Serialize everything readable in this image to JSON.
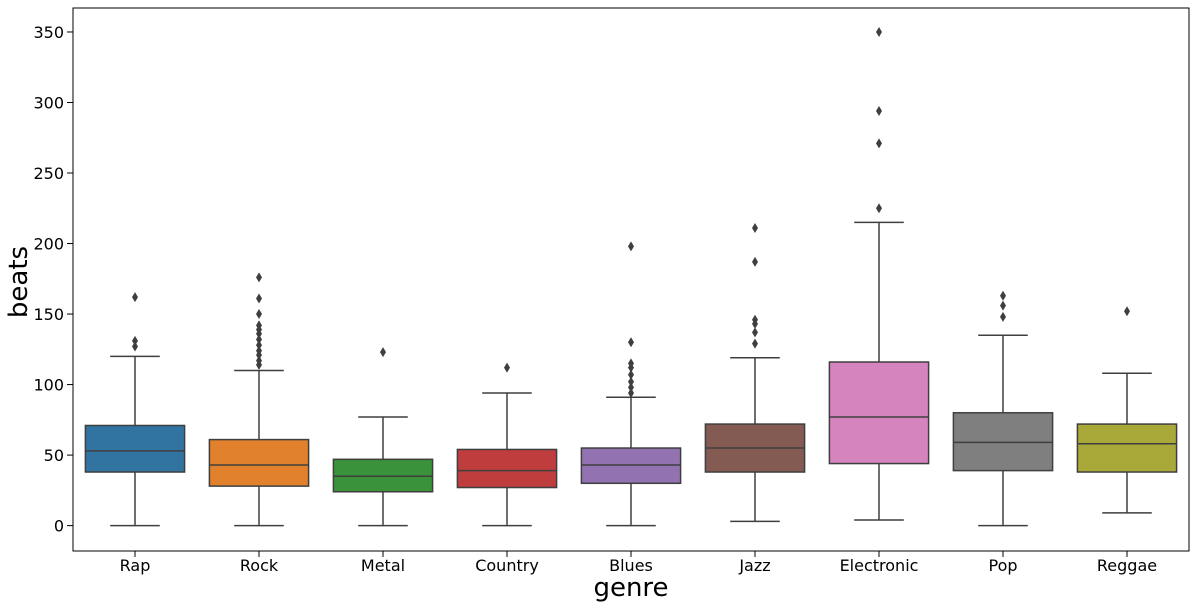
{
  "chart_data": {
    "type": "box",
    "title": "",
    "xlabel": "genre",
    "ylabel": "beats",
    "ylim": [
      -18,
      367
    ],
    "yticks": [
      0,
      50,
      100,
      150,
      200,
      250,
      300,
      350
    ],
    "grid": false,
    "categories": [
      "Rap",
      "Rock",
      "Metal",
      "Country",
      "Blues",
      "Jazz",
      "Electronic",
      "Pop",
      "Reggae"
    ],
    "boxes": [
      {
        "category": "Rap",
        "whisker_low": 0,
        "q1": 38,
        "median": 53,
        "q3": 71,
        "whisker_high": 120,
        "outliers": [
          127,
          131,
          162
        ],
        "color": "#3274a1"
      },
      {
        "category": "Rock",
        "whisker_low": 0,
        "q1": 28,
        "median": 43,
        "q3": 61,
        "whisker_high": 110,
        "outliers": [
          114,
          117,
          121,
          124,
          128,
          132,
          136,
          139,
          142,
          150,
          161,
          176
        ],
        "color": "#e1812c"
      },
      {
        "category": "Metal",
        "whisker_low": 0,
        "q1": 24,
        "median": 35,
        "q3": 47,
        "whisker_high": 77,
        "outliers": [
          123
        ],
        "color": "#3a923a"
      },
      {
        "category": "Country",
        "whisker_low": 0,
        "q1": 27,
        "median": 39,
        "q3": 54,
        "whisker_high": 94,
        "outliers": [
          112
        ],
        "color": "#c03d3e"
      },
      {
        "category": "Blues",
        "whisker_low": 0,
        "q1": 30,
        "median": 43,
        "q3": 55,
        "whisker_high": 91,
        "outliers": [
          94,
          98,
          102,
          107,
          112,
          115,
          130,
          198
        ],
        "color": "#9372b2"
      },
      {
        "category": "Jazz",
        "whisker_low": 3,
        "q1": 38,
        "median": 55,
        "q3": 72,
        "whisker_high": 119,
        "outliers": [
          129,
          137,
          143,
          146,
          187,
          211
        ],
        "color": "#845b53"
      },
      {
        "category": "Electronic",
        "whisker_low": 4,
        "q1": 44,
        "median": 77,
        "q3": 116,
        "whisker_high": 215,
        "outliers": [
          225,
          271,
          294,
          350
        ],
        "color": "#d684bd"
      },
      {
        "category": "Pop",
        "whisker_low": 0,
        "q1": 39,
        "median": 59,
        "q3": 80,
        "whisker_high": 135,
        "outliers": [
          148,
          156,
          163
        ],
        "color": "#7f7f7f"
      },
      {
        "category": "Reggae",
        "whisker_low": 9,
        "q1": 38,
        "median": 58,
        "q3": 72,
        "whisker_high": 108,
        "outliers": [
          152
        ],
        "color": "#a9a93a"
      }
    ],
    "line_color": "#3f3f3f"
  }
}
